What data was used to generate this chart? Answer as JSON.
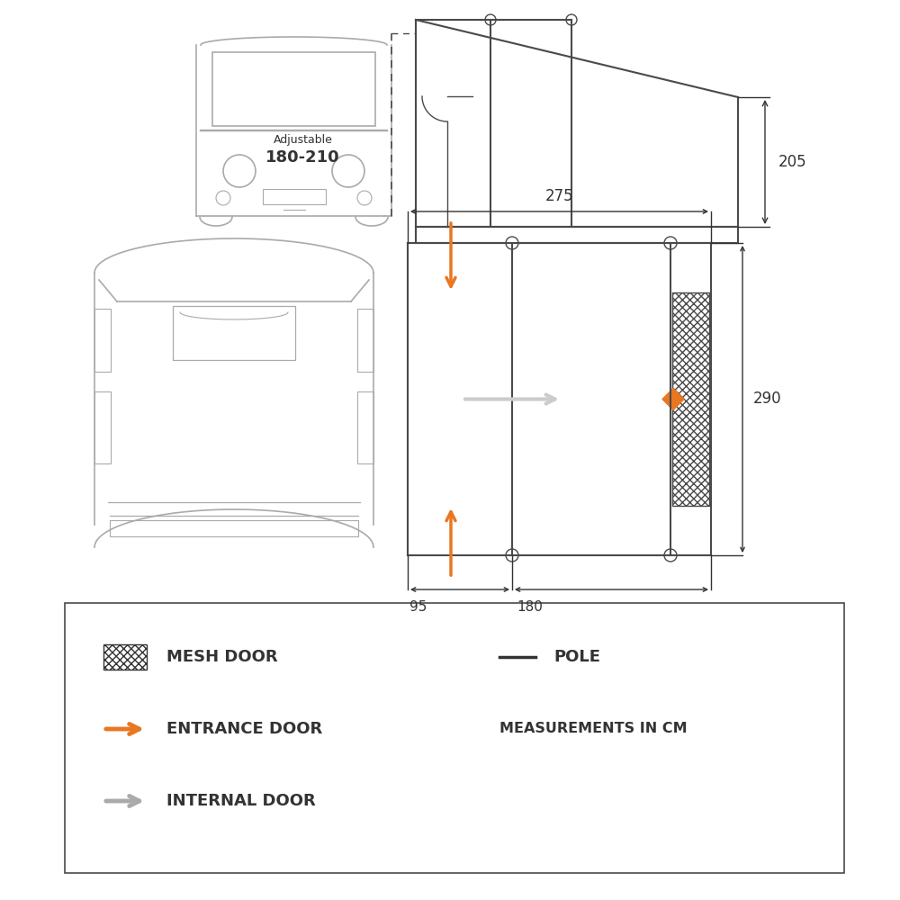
{
  "bg_color": "#ffffff",
  "line_color": "#4a4a4a",
  "orange_color": "#E87722",
  "gray_arrow_color": "#aaaaaa",
  "dim_color": "#333333",
  "van_color": "#aaaaaa",
  "dim_205": "205",
  "dim_275": "275",
  "dim_290": "290",
  "dim_95": "95",
  "dim_180": "180",
  "adj_text1": "Adjustable",
  "adj_text2": "180-210",
  "leg_mesh": "MESH DOOR",
  "leg_entrance": "ENTRANCE DOOR",
  "leg_internal": "INTERNAL DOOR",
  "leg_pole": "POLE",
  "leg_measure": "MEASUREMENTS IN CM"
}
